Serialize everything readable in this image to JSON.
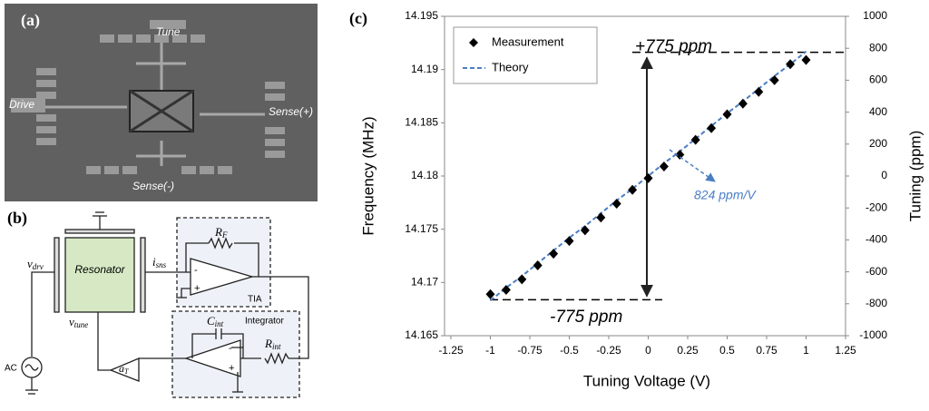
{
  "panel_a": {
    "label": "(a)",
    "labels": [
      "Tune",
      "Drive",
      "Sense(+)",
      "Sense(-)"
    ]
  },
  "panel_b": {
    "label": "(b)",
    "resonator": "Resonator",
    "v_drv": {
      "base": "v",
      "sub": "drv"
    },
    "i_sns": {
      "base": "i",
      "sub": "sns"
    },
    "r_f": {
      "base": "R",
      "sub": "F"
    },
    "tia": "TIA",
    "integrator": "Integrator",
    "c_int": {
      "base": "C",
      "sub": "int"
    },
    "r_int": {
      "base": "R",
      "sub": "int"
    },
    "ac": "AC",
    "v_tune": {
      "base": "v",
      "sub": "tune"
    },
    "a_t": {
      "base": "a",
      "sub": "T"
    },
    "minus": "-",
    "plus": "+"
  },
  "chart_data": {
    "type": "scatter",
    "panel_label": "(c)",
    "x_label": "Tuning Voltage (V)",
    "y_label": "Frequency (MHz)",
    "y2_label": "Tuning (ppm)",
    "x": [
      -1,
      -0.9,
      -0.8,
      -0.7,
      -0.6,
      -0.5,
      -0.4,
      -0.3,
      -0.2,
      -0.1,
      0,
      0.1,
      0.2,
      0.3,
      0.4,
      0.5,
      0.6,
      0.7,
      0.8,
      0.9,
      1
    ],
    "series": [
      {
        "name": "Measurement",
        "color": "#000000",
        "marker": "diamond",
        "values": [
          14.1689,
          14.1693,
          14.1703,
          14.1716,
          14.1727,
          14.1739,
          14.1749,
          14.1761,
          14.1774,
          14.1787,
          14.1798,
          14.1809,
          14.182,
          14.1834,
          14.1845,
          14.1858,
          14.1868,
          14.1879,
          14.189,
          14.1905,
          14.1909
        ]
      },
      {
        "name": "Theory",
        "color": "#4a7ec4",
        "marker": "dashed-line",
        "values": [
          14.1683,
          14.1695,
          14.1706,
          14.1718,
          14.173,
          14.1742,
          14.1753,
          14.1765,
          14.1777,
          14.1788,
          14.18,
          14.1812,
          14.1823,
          14.1835,
          14.1847,
          14.1859,
          14.187,
          14.1882,
          14.1894,
          14.1905,
          14.1917
        ]
      }
    ],
    "xlim": [
      -1.25,
      1.25
    ],
    "xticks": [
      -1.25,
      -1,
      -0.75,
      -0.5,
      -0.25,
      0,
      0.25,
      0.5,
      0.75,
      1,
      1.25
    ],
    "ylim": [
      14.165,
      14.195
    ],
    "yticks": [
      14.165,
      14.17,
      14.175,
      14.18,
      14.185,
      14.19,
      14.195
    ],
    "y2lim": [
      -1000,
      1000
    ],
    "y2ticks": [
      -1000,
      -800,
      -600,
      -400,
      -200,
      0,
      200,
      400,
      600,
      800,
      1000
    ],
    "ref_lines": [
      775,
      -775
    ],
    "annotations": [
      "+775 ppm",
      "-775 ppm",
      "824 ppm/V"
    ],
    "legend": "upper left",
    "grid": false
  }
}
